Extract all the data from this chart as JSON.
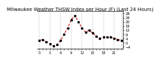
{
  "title": "Milwaukee Weather THSW Index per Hour (F) (Last 24 Hours)",
  "x": [
    0,
    1,
    2,
    3,
    4,
    5,
    6,
    7,
    8,
    9,
    10,
    11,
    12,
    13,
    14,
    15,
    16,
    17,
    18,
    19,
    20,
    21,
    22,
    23
  ],
  "y": [
    2,
    3,
    1,
    -1,
    -3,
    -2,
    2,
    8,
    14,
    22,
    26,
    20,
    14,
    10,
    12,
    9,
    6,
    4,
    5,
    5,
    5,
    4,
    3,
    2
  ],
  "xlim": [
    -0.5,
    23.5
  ],
  "ylim": [
    -6,
    30
  ],
  "yticks": [
    -4,
    0,
    4,
    8,
    12,
    16,
    20,
    24,
    28
  ],
  "line_color": "#cc0000",
  "marker_color": "#000000",
  "bg_color": "#ffffff",
  "plot_bg_color": "#ffffff",
  "grid_color": "#888888",
  "title_fontsize": 5.0,
  "tick_fontsize": 3.8,
  "line_width": 0.8,
  "marker_size": 1.5,
  "vgrid_hours": [
    0,
    3,
    6,
    9,
    12,
    15,
    18,
    21,
    23
  ]
}
